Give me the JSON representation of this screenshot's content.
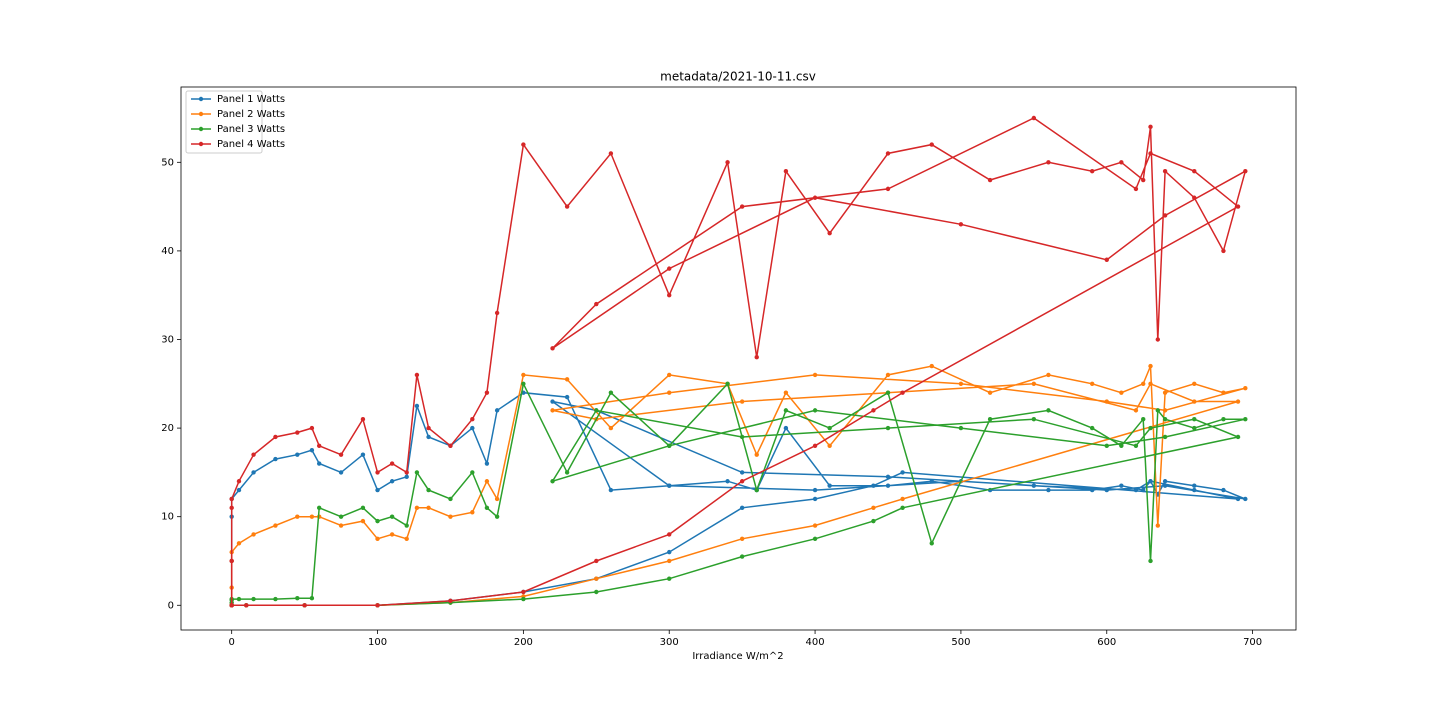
{
  "chart_data": {
    "type": "line",
    "title": "metadata/2021-10-11.csv",
    "x_label": "Irradiance W/m^2",
    "x": [
      0,
      0,
      0,
      0,
      5,
      15,
      30,
      45,
      55,
      60,
      75,
      90,
      100,
      110,
      120,
      127,
      135,
      150,
      165,
      175,
      182,
      200,
      230,
      260,
      300,
      340,
      360,
      380,
      410,
      450,
      480,
      520,
      560,
      590,
      610,
      625,
      630,
      635,
      640,
      660,
      680,
      695,
      640,
      600,
      500,
      400,
      300,
      220,
      250,
      350,
      450,
      550,
      620,
      630,
      660,
      690,
      460,
      440,
      400,
      350,
      300,
      250,
      200,
      150,
      100,
      50,
      10,
      0,
      0
    ],
    "series": [
      {
        "name": "Panel 1 Watts",
        "color": "#1f77b4",
        "values": [
          0,
          5,
          10,
          12,
          13,
          15,
          16.5,
          17,
          17.5,
          16,
          15,
          17,
          13,
          14,
          14.5,
          22.5,
          19,
          18,
          20,
          16,
          22,
          24,
          23.5,
          13,
          13.5,
          14,
          13,
          20,
          13.5,
          13.5,
          14,
          13,
          13,
          13,
          13.5,
          13,
          14,
          12.5,
          14,
          13.5,
          13,
          12,
          13.5,
          13,
          14,
          13,
          13.5,
          23,
          22,
          15,
          14.5,
          13.5,
          13,
          14,
          13,
          12,
          15,
          13.5,
          12,
          11,
          6,
          3,
          1.5,
          0.5,
          0,
          0,
          0,
          0,
          0
        ]
      },
      {
        "name": "Panel 2 Watts",
        "color": "#ff7f0e",
        "values": [
          0,
          2,
          5,
          6,
          7,
          8,
          9,
          10,
          10,
          10,
          9,
          9.5,
          7.5,
          8,
          7.5,
          11,
          11,
          10,
          10.5,
          14,
          12,
          26,
          25.5,
          20,
          26,
          25,
          17,
          24,
          18,
          26,
          27,
          24,
          26,
          25,
          24,
          25,
          27,
          9,
          24,
          25,
          24,
          24.5,
          22,
          23,
          25,
          26,
          24,
          22,
          21,
          23,
          24,
          25,
          22,
          25,
          23,
          23,
          12,
          11,
          9,
          7.5,
          5,
          3,
          1,
          0.3,
          0,
          0,
          0,
          0,
          0
        ]
      },
      {
        "name": "Panel 3 Watts",
        "color": "#2ca02c",
        "values": [
          0,
          0.3,
          0.6,
          0.7,
          0.7,
          0.7,
          0.7,
          0.8,
          0.8,
          11,
          10,
          11,
          9.5,
          10,
          9,
          15,
          13,
          12,
          15,
          11,
          10,
          25,
          15,
          24,
          18,
          25,
          13,
          22,
          20,
          24,
          7,
          21,
          22,
          20,
          18,
          21,
          5,
          22,
          21,
          20,
          21,
          21,
          19,
          18,
          20,
          22,
          18,
          14,
          22,
          19,
          20,
          21,
          18,
          20,
          21,
          19,
          11,
          9.5,
          7.5,
          5.5,
          3,
          1.5,
          0.7,
          0.3,
          0,
          0,
          0,
          0,
          0
        ]
      },
      {
        "name": "Panel 4 Watts",
        "color": "#d62728",
        "values": [
          0,
          5,
          11,
          12,
          14,
          17,
          19,
          19.5,
          20,
          18,
          17,
          21,
          15,
          16,
          15,
          26,
          20,
          18,
          21,
          24,
          33,
          52,
          45,
          51,
          35,
          50,
          28,
          49,
          42,
          51,
          52,
          48,
          50,
          49,
          50,
          48,
          54,
          30,
          49,
          46,
          40,
          49,
          44,
          39,
          43,
          46,
          38,
          29,
          34,
          45,
          47,
          55,
          47,
          51,
          49,
          45,
          24,
          22,
          18,
          14,
          8,
          5,
          1.5,
          0.5,
          0,
          0,
          0,
          0,
          0
        ]
      }
    ],
    "xlim": [
      -34.75,
      729.75
    ],
    "ylim": [
      -2.79,
      58.5
    ],
    "xticks": [
      0,
      100,
      200,
      300,
      400,
      500,
      600,
      700
    ],
    "yticks": [
      0,
      10,
      20,
      30,
      40,
      50
    ],
    "legend": "upper left"
  }
}
